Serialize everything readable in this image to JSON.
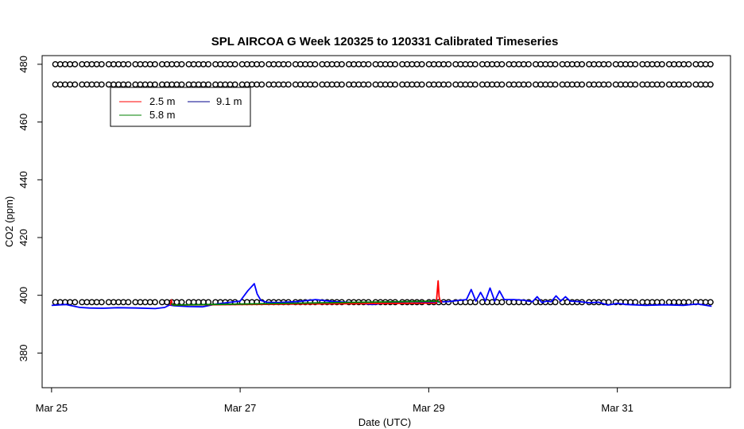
{
  "chart_data": {
    "type": "line",
    "title": "SPL AIRCOA G  Week 120325 to 120331  Calibrated Timeseries",
    "xlabel": "Date (UTC)",
    "ylabel": "CO2 (ppm)",
    "xlim": [
      -0.1,
      7.2
    ],
    "ylim": [
      368,
      483
    ],
    "x_ticks": [
      {
        "value": 0,
        "label": "Mar 25"
      },
      {
        "value": 2,
        "label": "Mar 27"
      },
      {
        "value": 4,
        "label": "Mar 29"
      },
      {
        "value": 6,
        "label": "Mar 31"
      }
    ],
    "y_ticks": [
      {
        "value": 380,
        "label": "380"
      },
      {
        "value": 400,
        "label": "400"
      },
      {
        "value": 420,
        "label": "420"
      },
      {
        "value": 440,
        "label": "440"
      },
      {
        "value": 460,
        "label": "460"
      },
      {
        "value": 480,
        "label": "480"
      }
    ],
    "grid": false,
    "legend_position": "top-left",
    "series": [
      {
        "name": "2.5 m",
        "color": "#ff0000",
        "x": [
          1.26,
          1.27,
          1.28,
          1.29,
          4.08,
          4.1,
          4.11,
          4.12,
          4.14
        ],
        "y": [
          396.5,
          398.4,
          396.8,
          396.6,
          397.3,
          405,
          399.5,
          398.2,
          397.5
        ]
      },
      {
        "name": "5.8 m",
        "color": "#008000",
        "x": [
          1.27,
          1.29,
          4.1,
          4.12
        ],
        "y": [
          397.2,
          396.6,
          398,
          397.4
        ]
      },
      {
        "name": "9.1 m",
        "color": "#0000ff",
        "x": [
          0,
          0.15,
          0.3,
          0.4,
          0.55,
          0.7,
          0.9,
          1.1,
          1.2,
          1.25,
          1.3,
          1.45,
          1.6,
          1.75,
          1.9,
          2.0,
          2.08,
          2.15,
          2.18,
          2.22,
          2.28,
          2.4,
          2.6,
          2.8,
          3.0,
          3.2,
          3.4,
          3.6,
          3.8,
          4.0,
          4.2,
          4.4,
          4.45,
          4.5,
          4.55,
          4.6,
          4.65,
          4.7,
          4.75,
          4.8,
          4.9,
          5.0,
          5.1,
          5.15,
          5.2,
          5.25,
          5.3,
          5.35,
          5.4,
          5.45,
          5.5,
          5.6,
          5.7,
          5.8,
          5.9,
          6.0,
          6.1,
          6.3,
          6.5,
          6.7,
          6.85,
          7.0
        ],
        "y": [
          396.5,
          396.8,
          395.8,
          395.6,
          395.5,
          395.7,
          395.6,
          395.4,
          395.8,
          396.6,
          396.4,
          396.1,
          396.0,
          397.0,
          397.6,
          398.0,
          401.5,
          404.0,
          400.5,
          398.2,
          397.6,
          397.5,
          397.8,
          398.5,
          397.8,
          397.5,
          396.8,
          397.5,
          397.8,
          397.6,
          397.8,
          398.5,
          402.0,
          398.0,
          401.0,
          398.0,
          402.5,
          398.0,
          401.5,
          398.5,
          398.5,
          398.3,
          397.8,
          399.5,
          397.5,
          398.0,
          397.8,
          399.8,
          398.0,
          399.5,
          398.0,
          397.8,
          397.4,
          397.6,
          396.6,
          397.2,
          396.8,
          396.5,
          396.7,
          396.5,
          397.0,
          396.2
        ]
      }
    ],
    "flag_markers": {
      "symbol": "circle",
      "rows": [
        473,
        397.6,
        480
      ]
    }
  }
}
